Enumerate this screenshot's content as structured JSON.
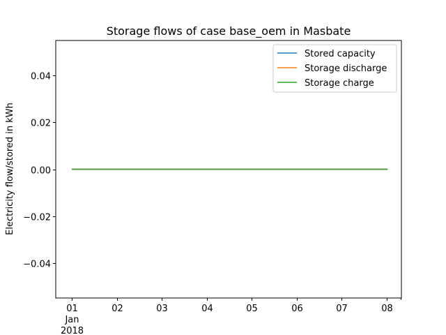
{
  "chart_data": {
    "type": "line",
    "title": "Storage flows of case base_oem in Masbate",
    "xlabel": "",
    "ylabel": "Electricity flow/stored in kWh",
    "x_range": [
      "2018-01-01T00:00",
      "2018-01-08T00:00"
    ],
    "x_ticks": [
      "01",
      "02",
      "03",
      "04",
      "05",
      "06",
      "07",
      "08"
    ],
    "x_tick_sublabels": [
      "Jan",
      "2018"
    ],
    "ylim": [
      -0.055,
      0.055
    ],
    "y_ticks": [
      0.04,
      0.02,
      0.0,
      -0.02,
      -0.04
    ],
    "y_tick_labels": [
      "0.04",
      "0.02",
      "0.00",
      "−0.02",
      "−0.04"
    ],
    "grid": false,
    "legend_position": "top-right",
    "x": [
      "2018-01-01T00:00",
      "2018-01-07T23:00"
    ],
    "series": [
      {
        "name": "Stored capacity",
        "color": "#1f77b4",
        "values": [
          0,
          0
        ]
      },
      {
        "name": "Storage discharge",
        "color": "#ff7f0e",
        "values": [
          0,
          0
        ]
      },
      {
        "name": "Storage charge",
        "color": "#2ca02c",
        "values": [
          0,
          0
        ]
      }
    ]
  }
}
